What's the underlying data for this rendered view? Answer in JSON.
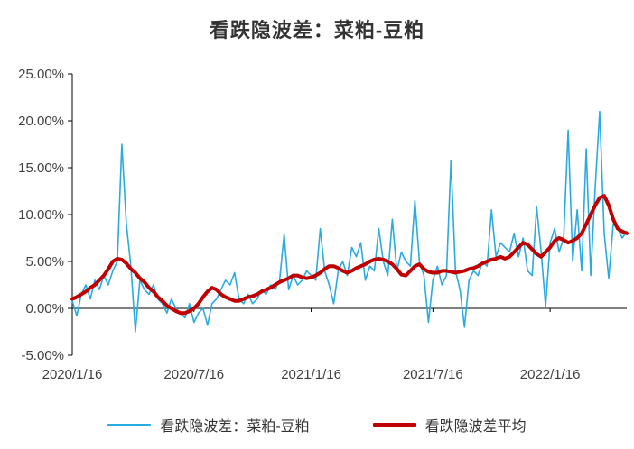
{
  "title": "看跌隐波差：菜粕-豆粕",
  "legend": [
    {
      "label": "看跌隐波差：菜粕-豆粕",
      "color": "#29ABE2"
    },
    {
      "label": "看跌隐波差平均",
      "color": "#C00000"
    }
  ],
  "chart_data": {
    "type": "line",
    "title": "看跌隐波差：菜粕-豆粕",
    "grid": false,
    "legend_position": "bottom",
    "ylim": [
      -5,
      25
    ],
    "y_ticks": [
      25,
      20,
      15,
      10,
      5,
      0,
      -5
    ],
    "y_tick_labels": [
      "25.00%",
      "20.00%",
      "15.00%",
      "10.00%",
      "5.00%",
      "0.00%",
      "-5.00%"
    ],
    "x_tick_labels": [
      "2020/1/16",
      "2020/7/16",
      "2021/1/16",
      "2021/7/16",
      "2022/1/16"
    ],
    "x_tick_indices": [
      0,
      27,
      53,
      80,
      106
    ],
    "n_points": 124,
    "x_unit": "weekly samples from 2020/1/16 to ~2022/5",
    "series": [
      {
        "name": "看跌隐波差：菜粕-豆粕",
        "color": "#29ABE2",
        "width": 1.6,
        "values": [
          0.8,
          -0.8,
          1.5,
          2.5,
          1.0,
          3.0,
          2.0,
          3.5,
          2.5,
          4.0,
          5.0,
          17.5,
          9.0,
          4.5,
          -2.5,
          3.0,
          2.0,
          1.5,
          2.5,
          1.0,
          0.5,
          -0.5,
          1.0,
          0.0,
          -0.5,
          -1.0,
          0.5,
          -1.5,
          -0.5,
          0.0,
          -1.8,
          0.5,
          1.0,
          2.0,
          3.0,
          2.5,
          3.8,
          1.0,
          0.5,
          1.5,
          0.5,
          1.0,
          2.0,
          1.5,
          2.5,
          2.0,
          3.0,
          7.9,
          2.0,
          3.5,
          2.5,
          3.0,
          4.0,
          3.5,
          3.0,
          8.5,
          4.0,
          2.5,
          0.5,
          4.0,
          5.0,
          3.5,
          6.5,
          5.5,
          7.0,
          3.0,
          4.5,
          4.0,
          8.5,
          5.0,
          3.5,
          9.5,
          4.0,
          6.0,
          5.0,
          4.5,
          11.5,
          5.0,
          3.5,
          -1.5,
          3.0,
          4.5,
          2.5,
          3.5,
          15.8,
          4.0,
          2.0,
          -2.0,
          3.0,
          4.0,
          3.5,
          5.0,
          4.5,
          10.5,
          5.5,
          7.0,
          6.5,
          6.0,
          8.0,
          5.5,
          7.5,
          4.0,
          3.5,
          10.8,
          6.0,
          0.2,
          7.0,
          8.5,
          6.0,
          7.5,
          19.0,
          5.0,
          10.5,
          4.0,
          17.0,
          3.5,
          13.0,
          21.0,
          8.0,
          3.2,
          9.0,
          8.5,
          7.5,
          8.2
        ]
      },
      {
        "name": "看跌隐波差平均",
        "color": "#C00000",
        "width": 4,
        "values": [
          1.0,
          1.2,
          1.5,
          1.8,
          2.2,
          2.5,
          3.0,
          3.5,
          4.2,
          5.0,
          5.3,
          5.2,
          4.8,
          4.2,
          3.8,
          3.2,
          2.8,
          2.2,
          1.8,
          1.2,
          0.8,
          0.3,
          0.0,
          -0.3,
          -0.5,
          -0.5,
          -0.3,
          0.0,
          0.5,
          1.2,
          1.8,
          2.2,
          2.0,
          1.5,
          1.2,
          1.0,
          0.8,
          0.8,
          1.0,
          1.2,
          1.3,
          1.5,
          1.8,
          2.0,
          2.2,
          2.5,
          2.8,
          3.0,
          3.2,
          3.5,
          3.5,
          3.3,
          3.2,
          3.3,
          3.5,
          3.8,
          4.2,
          4.5,
          4.5,
          4.3,
          4.0,
          3.8,
          4.0,
          4.3,
          4.5,
          4.7,
          5.0,
          5.2,
          5.3,
          5.2,
          5.0,
          4.7,
          4.2,
          3.6,
          3.5,
          4.0,
          4.5,
          4.7,
          4.2,
          3.9,
          3.8,
          3.8,
          4.0,
          4.0,
          3.9,
          3.8,
          3.9,
          4.0,
          4.2,
          4.3,
          4.5,
          4.8,
          5.0,
          5.2,
          5.3,
          5.5,
          5.3,
          5.5,
          6.0,
          6.5,
          7.0,
          6.8,
          6.3,
          5.8,
          5.5,
          6.0,
          6.5,
          7.2,
          7.5,
          7.3,
          7.0,
          7.2,
          7.5,
          8.0,
          9.0,
          10.0,
          11.0,
          11.8,
          12.0,
          11.0,
          9.5,
          8.5,
          8.2,
          8.0
        ]
      }
    ]
  }
}
